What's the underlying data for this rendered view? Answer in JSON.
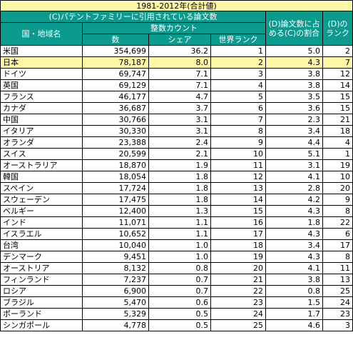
{
  "title": "1981-2012年(合計値)",
  "header": {
    "group_c": "(C)パテントファミリーに引用されている論文数",
    "country": "国・地域名",
    "integer_count": "整数カウント",
    "col_count": "数",
    "col_share": "シェア",
    "col_world_rank": "世界ランク",
    "col_d": "(D)論文数に占める(C)の割合",
    "col_d_rank": "(D)のランク"
  },
  "highlight_row": "日本",
  "rows": [
    {
      "country": "米国",
      "count": "354,699",
      "share": "36.2",
      "rank": "1",
      "ratio": "5.0",
      "d_rank": "2"
    },
    {
      "country": "日本",
      "count": "78,187",
      "share": "8.0",
      "rank": "2",
      "ratio": "4.3",
      "d_rank": "7"
    },
    {
      "country": "ドイツ",
      "count": "69,747",
      "share": "7.1",
      "rank": "3",
      "ratio": "3.8",
      "d_rank": "12"
    },
    {
      "country": "英国",
      "count": "69,129",
      "share": "7.1",
      "rank": "4",
      "ratio": "3.8",
      "d_rank": "14"
    },
    {
      "country": "フランス",
      "count": "46,177",
      "share": "4.7",
      "rank": "5",
      "ratio": "3.5",
      "d_rank": "15"
    },
    {
      "country": "カナダ",
      "count": "36,687",
      "share": "3.7",
      "rank": "6",
      "ratio": "3.6",
      "d_rank": "15"
    },
    {
      "country": "中国",
      "count": "30,766",
      "share": "3.1",
      "rank": "7",
      "ratio": "2.3",
      "d_rank": "21"
    },
    {
      "country": "イタリア",
      "count": "30,330",
      "share": "3.1",
      "rank": "8",
      "ratio": "3.4",
      "d_rank": "18"
    },
    {
      "country": "オランダ",
      "count": "23,388",
      "share": "2.4",
      "rank": "9",
      "ratio": "4.4",
      "d_rank": "4"
    },
    {
      "country": "スイス",
      "count": "20,599",
      "share": "2.1",
      "rank": "10",
      "ratio": "5.1",
      "d_rank": "1"
    },
    {
      "country": "オーストラリア",
      "count": "18,870",
      "share": "1.9",
      "rank": "11",
      "ratio": "3.1",
      "d_rank": "19"
    },
    {
      "country": "韓国",
      "count": "18,054",
      "share": "1.8",
      "rank": "12",
      "ratio": "4.1",
      "d_rank": "10"
    },
    {
      "country": "スペイン",
      "count": "17,724",
      "share": "1.8",
      "rank": "13",
      "ratio": "2.8",
      "d_rank": "20"
    },
    {
      "country": "スウェーデン",
      "count": "17,475",
      "share": "1.8",
      "rank": "14",
      "ratio": "4.2",
      "d_rank": "9"
    },
    {
      "country": "ベルギー",
      "count": "12,400",
      "share": "1.3",
      "rank": "15",
      "ratio": "4.3",
      "d_rank": "8"
    },
    {
      "country": "インド",
      "count": "11,071",
      "share": "1.1",
      "rank": "16",
      "ratio": "1.8",
      "d_rank": "22"
    },
    {
      "country": "イスラエル",
      "count": "10,652",
      "share": "1.1",
      "rank": "17",
      "ratio": "4.3",
      "d_rank": "6"
    },
    {
      "country": "台湾",
      "count": "10,040",
      "share": "1.0",
      "rank": "18",
      "ratio": "3.4",
      "d_rank": "17"
    },
    {
      "country": "デンマーク",
      "count": "9,451",
      "share": "1.0",
      "rank": "19",
      "ratio": "4.3",
      "d_rank": "8"
    },
    {
      "country": "オーストリア",
      "count": "8,132",
      "share": "0.8",
      "rank": "20",
      "ratio": "4.1",
      "d_rank": "11"
    },
    {
      "country": "フィンランド",
      "count": "7,237",
      "share": "0.7",
      "rank": "21",
      "ratio": "3.8",
      "d_rank": "13"
    },
    {
      "country": "ロシア",
      "count": "6,900",
      "share": "0.7",
      "rank": "22",
      "ratio": "0.8",
      "d_rank": "25"
    },
    {
      "country": "ブラジル",
      "count": "5,470",
      "share": "0.6",
      "rank": "23",
      "ratio": "1.5",
      "d_rank": "24"
    },
    {
      "country": "ポーランド",
      "count": "5,329",
      "share": "0.5",
      "rank": "24",
      "ratio": "1.7",
      "d_rank": "23"
    },
    {
      "country": "シンガポール",
      "count": "4,778",
      "share": "0.5",
      "rank": "25",
      "ratio": "4.6",
      "d_rank": "3"
    }
  ]
}
